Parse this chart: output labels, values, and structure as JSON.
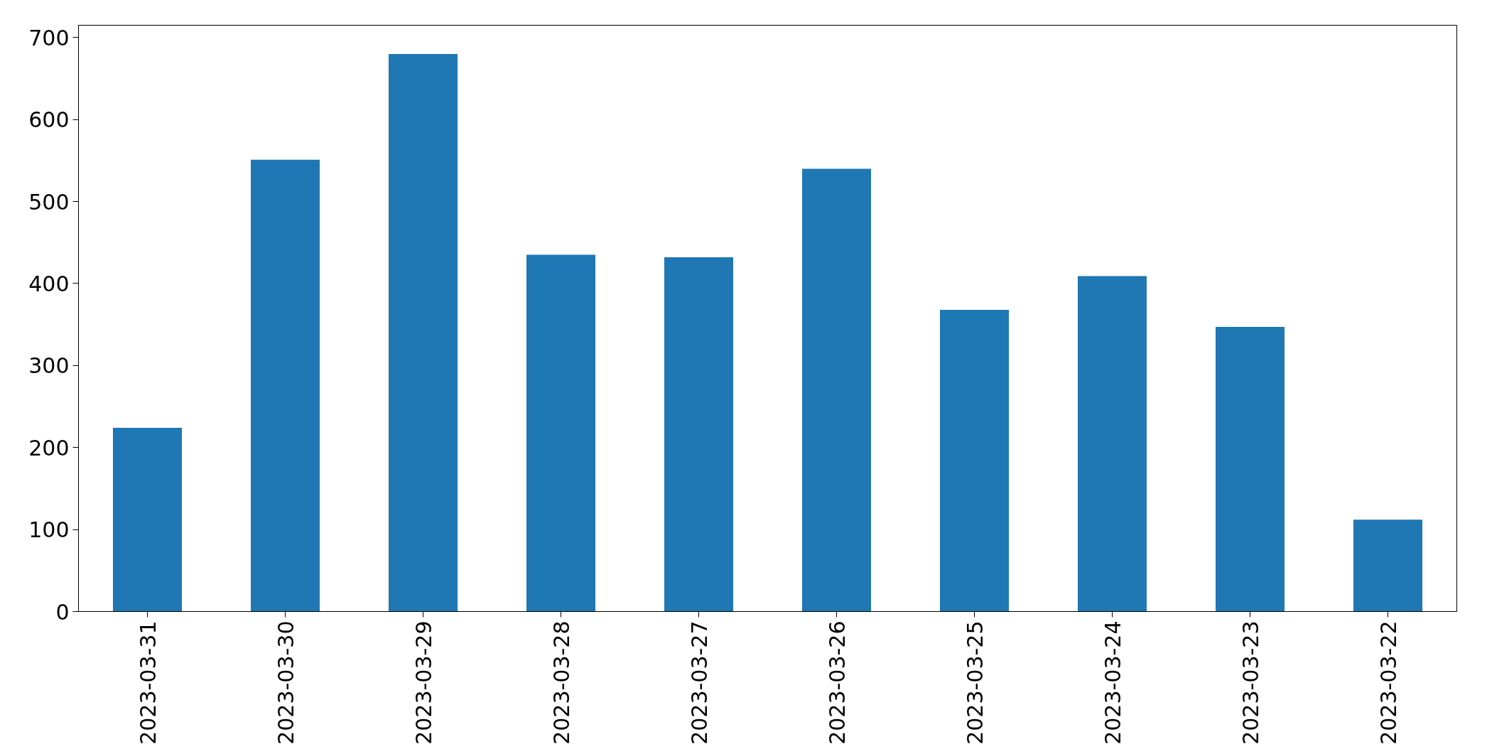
{
  "chart_data": {
    "type": "bar",
    "categories": [
      "2023-03-31",
      "2023-03-30",
      "2023-03-29",
      "2023-03-28",
      "2023-03-27",
      "2023-03-26",
      "2023-03-25",
      "2023-03-24",
      "2023-03-23",
      "2023-03-22"
    ],
    "values": [
      224,
      551,
      680,
      435,
      432,
      540,
      368,
      409,
      347,
      112
    ],
    "color": "#1f77b4",
    "ylim": [
      0,
      715
    ],
    "yticks": [
      0,
      100,
      200,
      300,
      400,
      500,
      600,
      700
    ],
    "grid": false
  }
}
